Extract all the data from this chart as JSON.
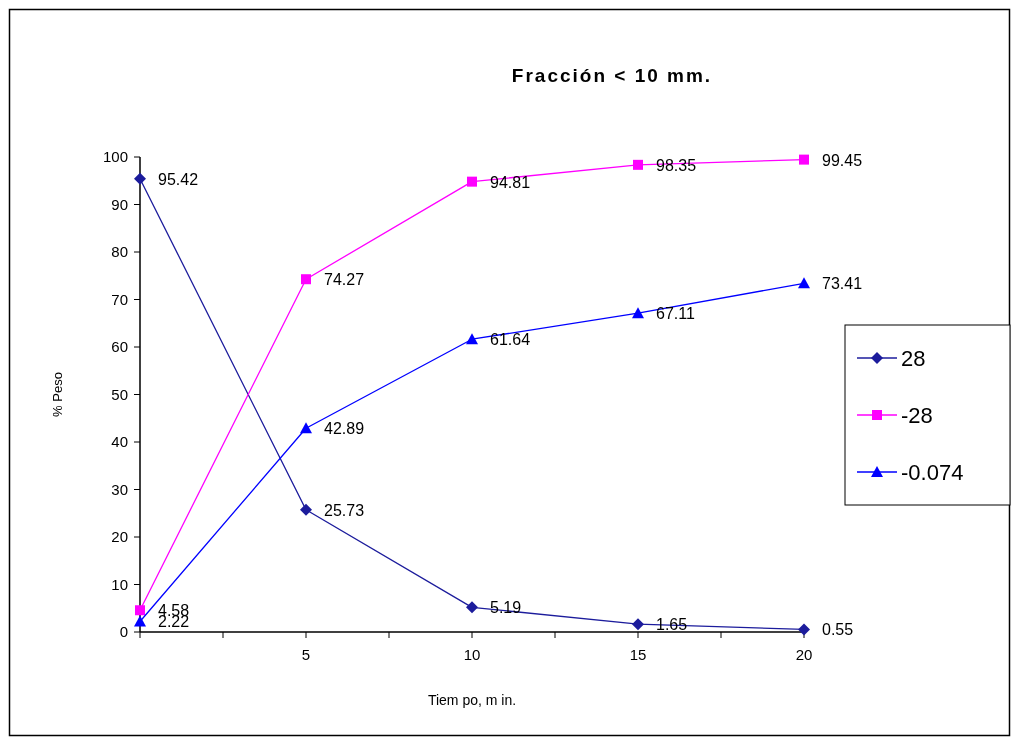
{
  "chart_data": {
    "type": "line",
    "title": "Fracción < 10 mm.",
    "xlabel": "Tiem po, m in.",
    "ylabel": "% Peso",
    "x": [
      0,
      5,
      10,
      15,
      20
    ],
    "series": [
      {
        "name": "28",
        "color": "#1c1c9c",
        "marker": "diamond",
        "values": [
          95.42,
          25.73,
          5.19,
          1.65,
          0.55
        ]
      },
      {
        "name": "-28",
        "color": "#ff00ff",
        "marker": "square",
        "values": [
          4.58,
          74.27,
          94.81,
          98.35,
          99.45
        ]
      },
      {
        "name": "-0.074",
        "color": "#0000ff",
        "marker": "triangle",
        "values": [
          2.22,
          42.89,
          61.64,
          67.11,
          73.41
        ]
      }
    ],
    "xlim": [
      0,
      20
    ],
    "xticks": [
      {
        "value": 0,
        "label": null
      },
      {
        "value": 2.5,
        "label": null
      },
      5,
      {
        "value": 7.5,
        "label": null
      },
      10,
      {
        "value": 12.5,
        "label": null
      },
      15,
      {
        "value": 17.5,
        "label": null
      },
      20
    ],
    "ylim": [
      0,
      100
    ],
    "yticks": [
      0,
      10,
      20,
      30,
      40,
      50,
      60,
      70,
      80,
      90,
      100
    ],
    "data_labels": true,
    "legend": "right",
    "grid": false
  }
}
